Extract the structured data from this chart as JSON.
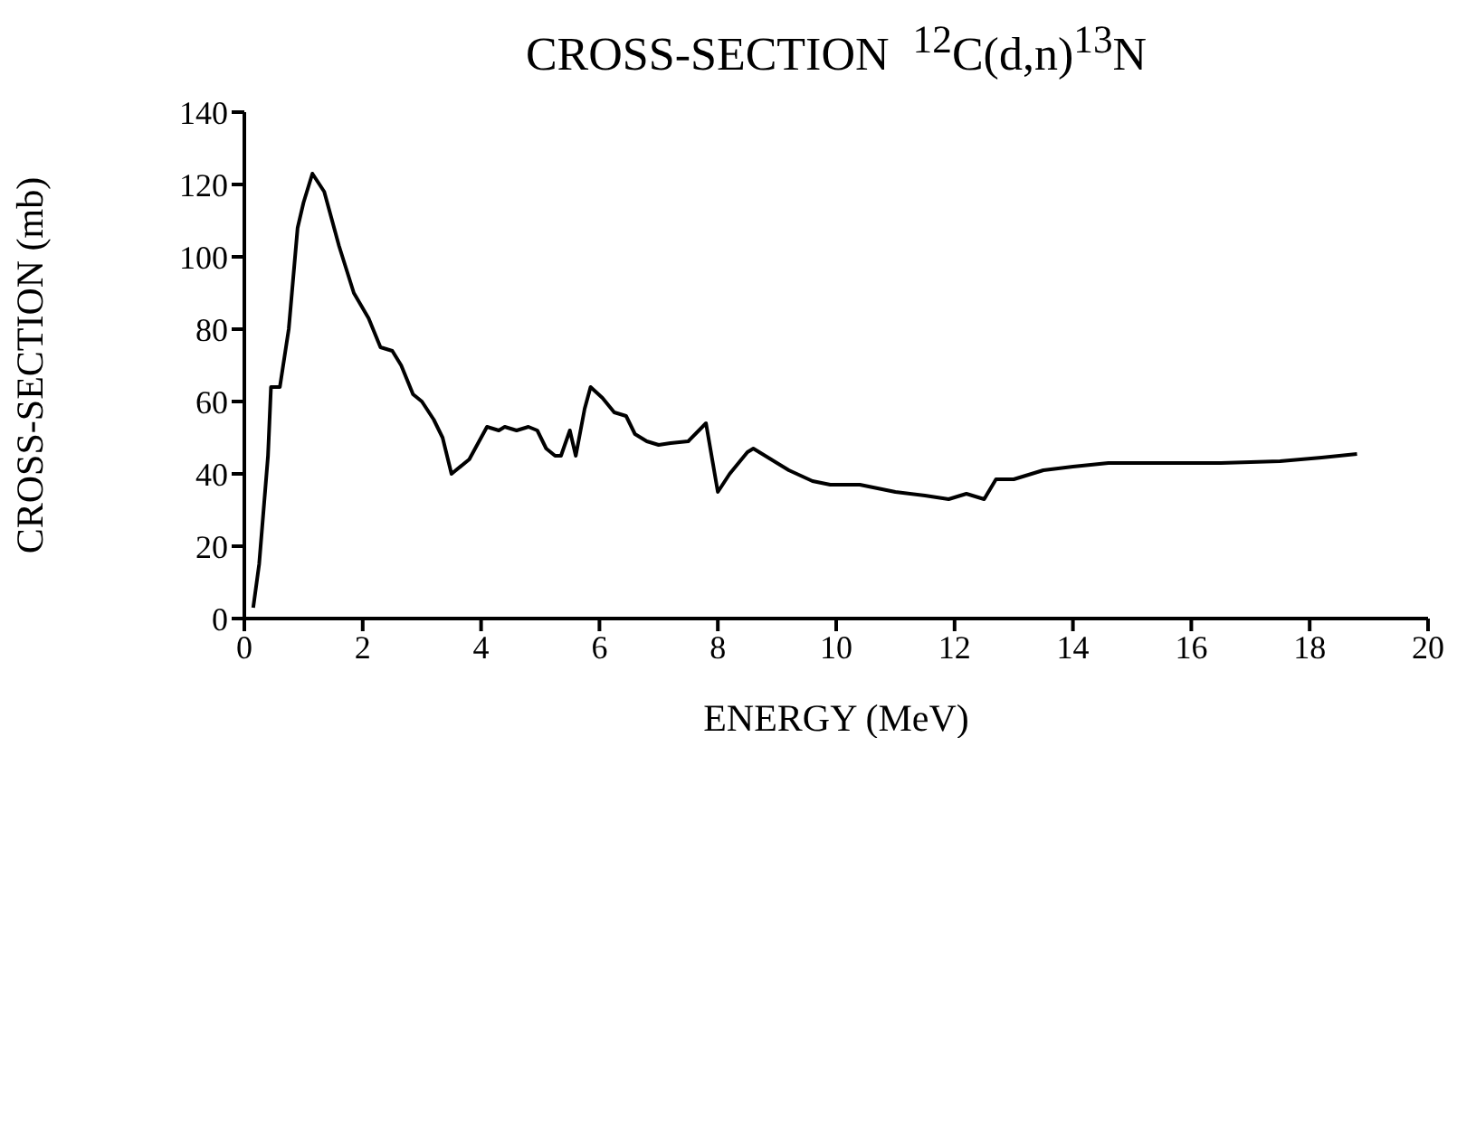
{
  "chart_data": {
    "type": "line",
    "title": "CROSS-SECTION  $^{12}$C(d,n)$^{13}$N",
    "xlabel": "ENERGY (MeV)",
    "ylabel": "CROSS-SECTION (mb)",
    "x": [
      0.15,
      0.25,
      0.4,
      0.45,
      0.6,
      0.75,
      0.9,
      1.0,
      1.15,
      1.35,
      1.6,
      1.85,
      2.1,
      2.3,
      2.5,
      2.65,
      2.85,
      3.0,
      3.2,
      3.35,
      3.5,
      3.8,
      4.1,
      4.3,
      4.4,
      4.6,
      4.8,
      4.95,
      5.1,
      5.25,
      5.35,
      5.5,
      5.6,
      5.75,
      5.85,
      6.05,
      6.25,
      6.45,
      6.6,
      6.8,
      7.0,
      7.2,
      7.5,
      7.8,
      8.0,
      8.2,
      8.5,
      8.6,
      8.9,
      9.2,
      9.6,
      9.9,
      10.4,
      11.0,
      11.5,
      11.9,
      12.2,
      12.5,
      12.7,
      13.0,
      13.5,
      14.0,
      14.6,
      15.5,
      16.5,
      17.5,
      18.2,
      18.8
    ],
    "series": [
      {
        "color": "#000000",
        "values": [
          3,
          15,
          45,
          64,
          64,
          80,
          108,
          115,
          123,
          118,
          103,
          90,
          83,
          75,
          74,
          70,
          62,
          60,
          55,
          50,
          40,
          44,
          53,
          52,
          53,
          52,
          53,
          52,
          47,
          45,
          45,
          52,
          45,
          58,
          64,
          61,
          57,
          56,
          51,
          49,
          48,
          48.5,
          49,
          54,
          35,
          40,
          46,
          47,
          44,
          41,
          38,
          37,
          37,
          35,
          34,
          33,
          34.5,
          33,
          38.5,
          38.5,
          41,
          42,
          43,
          43,
          43,
          43.5,
          44.5,
          45.5
        ]
      }
    ],
    "xlim": [
      0,
      20
    ],
    "xticks": [
      0,
      2,
      4,
      6,
      8,
      10,
      12,
      14,
      16,
      18,
      20
    ],
    "ylim": [
      0,
      140
    ],
    "yticks": [
      0,
      20,
      40,
      60,
      80,
      100,
      120,
      140
    ],
    "grid": false,
    "marker": "none",
    "line_style": "solid"
  }
}
